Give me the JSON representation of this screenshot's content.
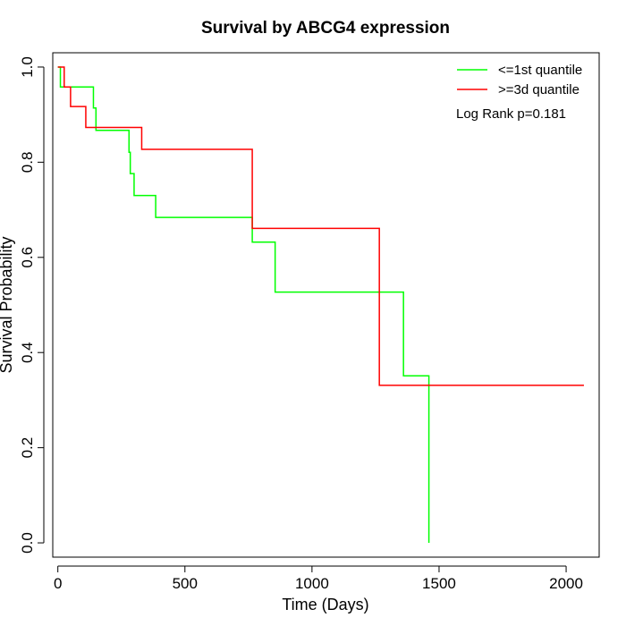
{
  "chart_data": {
    "type": "line",
    "step": true,
    "title": "Survival by ABCG4 expression",
    "xlabel": "Time (Days)",
    "ylabel": "Survival Probability",
    "xlim": [
      -20,
      2130
    ],
    "ylim": [
      -0.03,
      1.03
    ],
    "xticks": [
      0,
      500,
      1000,
      1500,
      2000
    ],
    "yticks": [
      0.0,
      0.2,
      0.4,
      0.6,
      0.8,
      1.0
    ],
    "xtick_labels": [
      "0",
      "500",
      "1000",
      "1500",
      "2000"
    ],
    "ytick_labels": [
      "0.0",
      "0.2",
      "0.4",
      "0.6",
      "0.8",
      "1.0"
    ],
    "grid": false,
    "legend_position": "top-right",
    "annotation": "Log Rank p=0.181",
    "series": [
      {
        "name": "<=1st quantile",
        "color": "#00ff00",
        "x": [
          0,
          10,
          135,
          140,
          150,
          280,
          285,
          300,
          385,
          765,
          855,
          1360,
          1460
        ],
        "y": [
          1.0,
          0.958,
          0.958,
          0.914,
          0.867,
          0.821,
          0.776,
          0.73,
          0.684,
          0.632,
          0.527,
          0.351,
          0.176
        ],
        "end_x": 1460,
        "end_y": 0.0
      },
      {
        "name": ">=3d quantile",
        "color": "#ff0000",
        "x": [
          0,
          25,
          50,
          110,
          330,
          765,
          1265
        ],
        "y": [
          1.0,
          0.958,
          0.917,
          0.873,
          0.827,
          0.661,
          0.331
        ],
        "end_x": 2070,
        "end_y": 0.331
      }
    ]
  }
}
